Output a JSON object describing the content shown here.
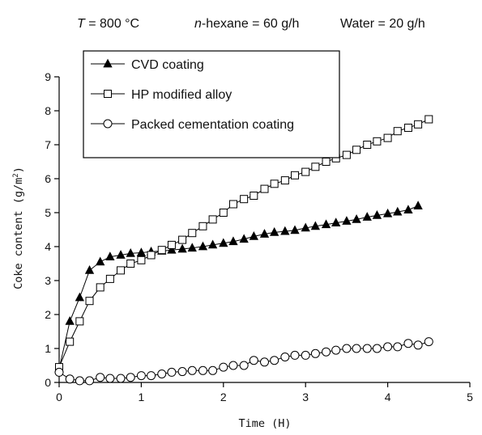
{
  "conditions": {
    "temperature": {
      "italic": "T",
      "rest": " = 800 °C"
    },
    "hexane": {
      "italic": "n",
      "rest": "-hexane = 60 g/h"
    },
    "water": "Water = 20 g/h"
  },
  "chart_data": {
    "type": "line",
    "xlabel": "Time (H)",
    "ylabel": "Coke content (g/m",
    "ylabel_sup": "2",
    "ylabel_end": ")",
    "xlim": [
      0,
      5
    ],
    "ylim": [
      0,
      9
    ],
    "xticks": [
      0,
      1,
      2,
      3,
      4,
      5
    ],
    "yticks": [
      0,
      1,
      2,
      3,
      4,
      5,
      6,
      7,
      8,
      9
    ],
    "grid": false,
    "legend_position": "top-left",
    "series": [
      {
        "name": "CVD coating",
        "marker": "filled-triangle",
        "x": [
          0.0,
          0.13,
          0.25,
          0.37,
          0.5,
          0.62,
          0.75,
          0.87,
          1.0,
          1.12,
          1.25,
          1.37,
          1.5,
          1.62,
          1.75,
          1.87,
          2.0,
          2.12,
          2.25,
          2.37,
          2.5,
          2.62,
          2.75,
          2.87,
          3.0,
          3.12,
          3.25,
          3.37,
          3.5,
          3.62,
          3.75,
          3.87,
          4.0,
          4.12,
          4.25,
          4.37
        ],
        "y": [
          0.4,
          1.8,
          2.5,
          3.3,
          3.55,
          3.7,
          3.75,
          3.8,
          3.82,
          3.85,
          3.87,
          3.9,
          3.93,
          3.96,
          4.0,
          4.05,
          4.1,
          4.15,
          4.22,
          4.3,
          4.37,
          4.42,
          4.45,
          4.48,
          4.55,
          4.6,
          4.65,
          4.7,
          4.75,
          4.8,
          4.87,
          4.92,
          4.97,
          5.02,
          5.08,
          5.2
        ]
      },
      {
        "name": "HP modified alloy",
        "marker": "open-square",
        "x": [
          0.0,
          0.13,
          0.25,
          0.37,
          0.5,
          0.62,
          0.75,
          0.87,
          1.0,
          1.12,
          1.25,
          1.37,
          1.5,
          1.62,
          1.75,
          1.87,
          2.0,
          2.12,
          2.25,
          2.37,
          2.5,
          2.62,
          2.75,
          2.87,
          3.0,
          3.12,
          3.25,
          3.37,
          3.5,
          3.62,
          3.75,
          3.87,
          4.0,
          4.12,
          4.25,
          4.37,
          4.5
        ],
        "y": [
          0.45,
          1.2,
          1.8,
          2.4,
          2.8,
          3.05,
          3.3,
          3.5,
          3.6,
          3.75,
          3.9,
          4.05,
          4.2,
          4.4,
          4.6,
          4.8,
          5.0,
          5.25,
          5.4,
          5.5,
          5.7,
          5.85,
          5.95,
          6.1,
          6.2,
          6.35,
          6.5,
          6.6,
          6.7,
          6.85,
          7.0,
          7.1,
          7.2,
          7.4,
          7.5,
          7.6,
          7.75
        ]
      },
      {
        "name": "Packed cementation coating",
        "marker": "open-circle",
        "x": [
          0.0,
          0.13,
          0.25,
          0.37,
          0.5,
          0.62,
          0.75,
          0.87,
          1.0,
          1.12,
          1.25,
          1.37,
          1.5,
          1.62,
          1.75,
          1.87,
          2.0,
          2.12,
          2.25,
          2.37,
          2.5,
          2.62,
          2.75,
          2.87,
          3.0,
          3.12,
          3.25,
          3.37,
          3.5,
          3.62,
          3.75,
          3.87,
          4.0,
          4.12,
          4.25,
          4.37,
          4.5
        ],
        "y": [
          0.3,
          0.1,
          0.05,
          0.05,
          0.15,
          0.12,
          0.12,
          0.15,
          0.2,
          0.2,
          0.25,
          0.3,
          0.32,
          0.35,
          0.35,
          0.35,
          0.45,
          0.5,
          0.5,
          0.65,
          0.6,
          0.65,
          0.75,
          0.8,
          0.8,
          0.85,
          0.9,
          0.95,
          1.0,
          1.0,
          1.0,
          1.0,
          1.05,
          1.05,
          1.15,
          1.1,
          1.2
        ]
      }
    ]
  }
}
